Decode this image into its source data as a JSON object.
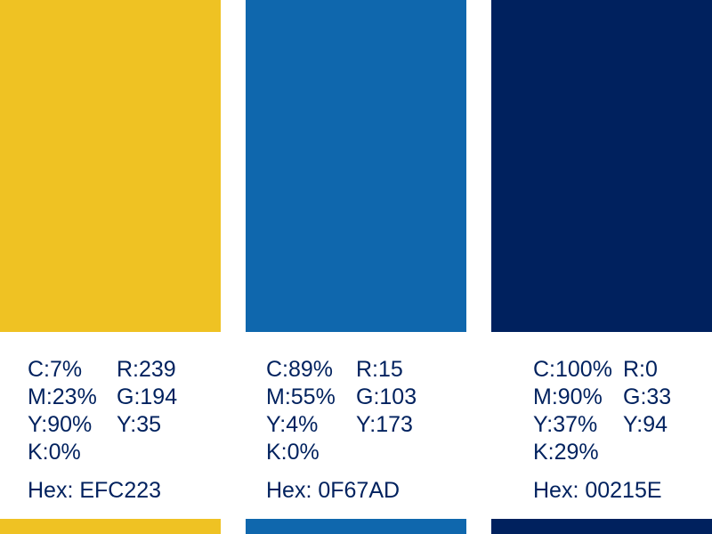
{
  "swatches": [
    {
      "color": "#EFC223",
      "cmyk": [
        "C:7%",
        "M:23%",
        "Y:90%",
        "K:0%"
      ],
      "rgb": [
        "R:239",
        "G:194",
        "Y:35"
      ],
      "hex": "Hex: EFC223"
    },
    {
      "color": "#0F67AD",
      "cmyk": [
        "C:89%",
        "M:55%",
        "Y:4%",
        "K:0%"
      ],
      "rgb": [
        "R:15",
        "G:103",
        "Y:173"
      ],
      "hex": "Hex: 0F67AD"
    },
    {
      "color": "#00215E",
      "cmyk": [
        "C:100%",
        "M:90%",
        "Y:37%",
        "K:29%"
      ],
      "rgb": [
        "R:0",
        "G:33",
        "Y:94"
      ],
      "hex": "Hex: 00215E"
    }
  ],
  "text_color": "#00215E"
}
